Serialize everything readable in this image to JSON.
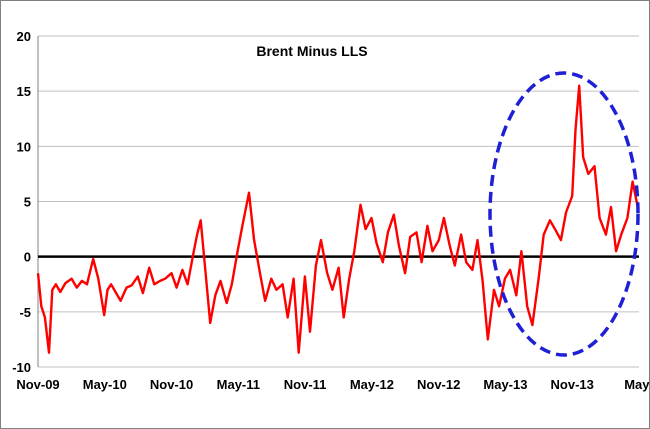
{
  "chart_data": {
    "type": "line",
    "title": "Brent Minus LLS",
    "xlabel": "",
    "ylabel": "",
    "ylim": [
      -10,
      20
    ],
    "yticks": [
      -10,
      -5,
      0,
      5,
      10,
      15,
      20
    ],
    "grid": "horizontal",
    "legend": "none",
    "x_tick_labels": [
      "Nov-09",
      "May-10",
      "Nov-10",
      "May-11",
      "Nov-11",
      "May-12",
      "Nov-12",
      "May-13",
      "Nov-13",
      "May-"
    ],
    "zero_line": true,
    "highlight": "dashed blue ellipse around May-13 to May-14",
    "colors": {
      "series": "#ff0000",
      "grid": "#c0c0c0",
      "zero_line": "#000000",
      "highlight": "#1f1fd6"
    },
    "series": [
      {
        "x": [
          "2009-11-01",
          "2009-11-10",
          "2009-11-20",
          "2009-12-01",
          "2009-12-10",
          "2009-12-20",
          "2010-01-01",
          "2010-01-15",
          "2010-02-01",
          "2010-02-15",
          "2010-03-01",
          "2010-03-15",
          "2010-04-01",
          "2010-04-15",
          "2010-05-01",
          "2010-05-10",
          "2010-05-20",
          "2010-06-01",
          "2010-06-15",
          "2010-07-01",
          "2010-07-15",
          "2010-08-01",
          "2010-08-15",
          "2010-09-01",
          "2010-09-15",
          "2010-10-01",
          "2010-10-15",
          "2010-11-01",
          "2010-11-15",
          "2010-12-01",
          "2010-12-15",
          "2011-01-01",
          "2011-01-10",
          "2011-01-20",
          "2011-02-01",
          "2011-02-15",
          "2011-03-01",
          "2011-03-15",
          "2011-04-01",
          "2011-04-15",
          "2011-05-01",
          "2011-05-15",
          "2011-06-01",
          "2011-06-15",
          "2011-07-01",
          "2011-07-15",
          "2011-08-01",
          "2011-08-15",
          "2011-09-01",
          "2011-09-15",
          "2011-10-01",
          "2011-10-15",
          "2011-11-01",
          "2011-11-15",
          "2011-12-01",
          "2011-12-15",
          "2012-01-01",
          "2012-01-15",
          "2012-02-01",
          "2012-02-15",
          "2012-03-01",
          "2012-03-15",
          "2012-04-01",
          "2012-04-15",
          "2012-05-01",
          "2012-05-15",
          "2012-06-01",
          "2012-06-15",
          "2012-07-01",
          "2012-07-15",
          "2012-08-01",
          "2012-08-15",
          "2012-09-01",
          "2012-09-15",
          "2012-10-01",
          "2012-10-15",
          "2012-11-01",
          "2012-11-15",
          "2012-12-01",
          "2012-12-15",
          "2013-01-01",
          "2013-01-15",
          "2013-02-01",
          "2013-02-15",
          "2013-03-01",
          "2013-03-15",
          "2013-04-01",
          "2013-04-15",
          "2013-05-01",
          "2013-05-15",
          "2013-06-01",
          "2013-06-15",
          "2013-07-01",
          "2013-07-15",
          "2013-08-01",
          "2013-08-15",
          "2013-09-01",
          "2013-09-15",
          "2013-10-01",
          "2013-10-15",
          "2013-11-01",
          "2013-11-10",
          "2013-11-20",
          "2013-12-01",
          "2013-12-15",
          "2014-01-01",
          "2014-01-15",
          "2014-02-01",
          "2014-02-15",
          "2014-03-01",
          "2014-03-15",
          "2014-04-01",
          "2014-04-15",
          "2014-05-01"
        ],
        "y": [
          -1.5,
          -4.5,
          -5.5,
          -8.7,
          -3,
          -2.5,
          -3.2,
          -2.4,
          -2.0,
          -2.8,
          -2.2,
          -2.5,
          -0.2,
          -2.0,
          -5.3,
          -3.0,
          -2.5,
          -3.2,
          -4.0,
          -2.8,
          -2.6,
          -1.8,
          -3.3,
          -1.0,
          -2.5,
          -2.2,
          -2.0,
          -1.5,
          -2.8,
          -1.2,
          -2.5,
          0.5,
          2.0,
          3.3,
          -1.0,
          -6.0,
          -3.5,
          -2.2,
          -4.2,
          -2.5,
          0.5,
          3.0,
          5.8,
          1.5,
          -1.5,
          -4.0,
          -2.0,
          -3.0,
          -2.5,
          -5.5,
          -2.0,
          -8.7,
          -1.8,
          -6.8,
          -0.8,
          1.5,
          -1.5,
          -3.0,
          -1.0,
          -5.5,
          -2.0,
          0.5,
          4.7,
          2.5,
          3.5,
          1.2,
          -0.5,
          2.2,
          3.8,
          1.0,
          -1.5,
          1.8,
          2.2,
          -0.5,
          2.8,
          0.5,
          1.5,
          3.5,
          1.0,
          -0.8,
          2.0,
          -0.5,
          -1.2,
          1.5,
          -2.2,
          -7.5,
          -3.0,
          -4.5,
          -2.0,
          -1.2,
          -3.5,
          0.5,
          -4.5,
          -6.2,
          -2.0,
          2.0,
          3.3,
          2.5,
          1.5,
          4.0,
          5.5,
          11.5,
          15.5,
          9.0,
          7.5,
          8.2,
          3.5,
          2.0,
          4.5,
          0.5,
          2.0,
          3.5,
          6.8,
          4.2
        ]
      }
    ]
  }
}
